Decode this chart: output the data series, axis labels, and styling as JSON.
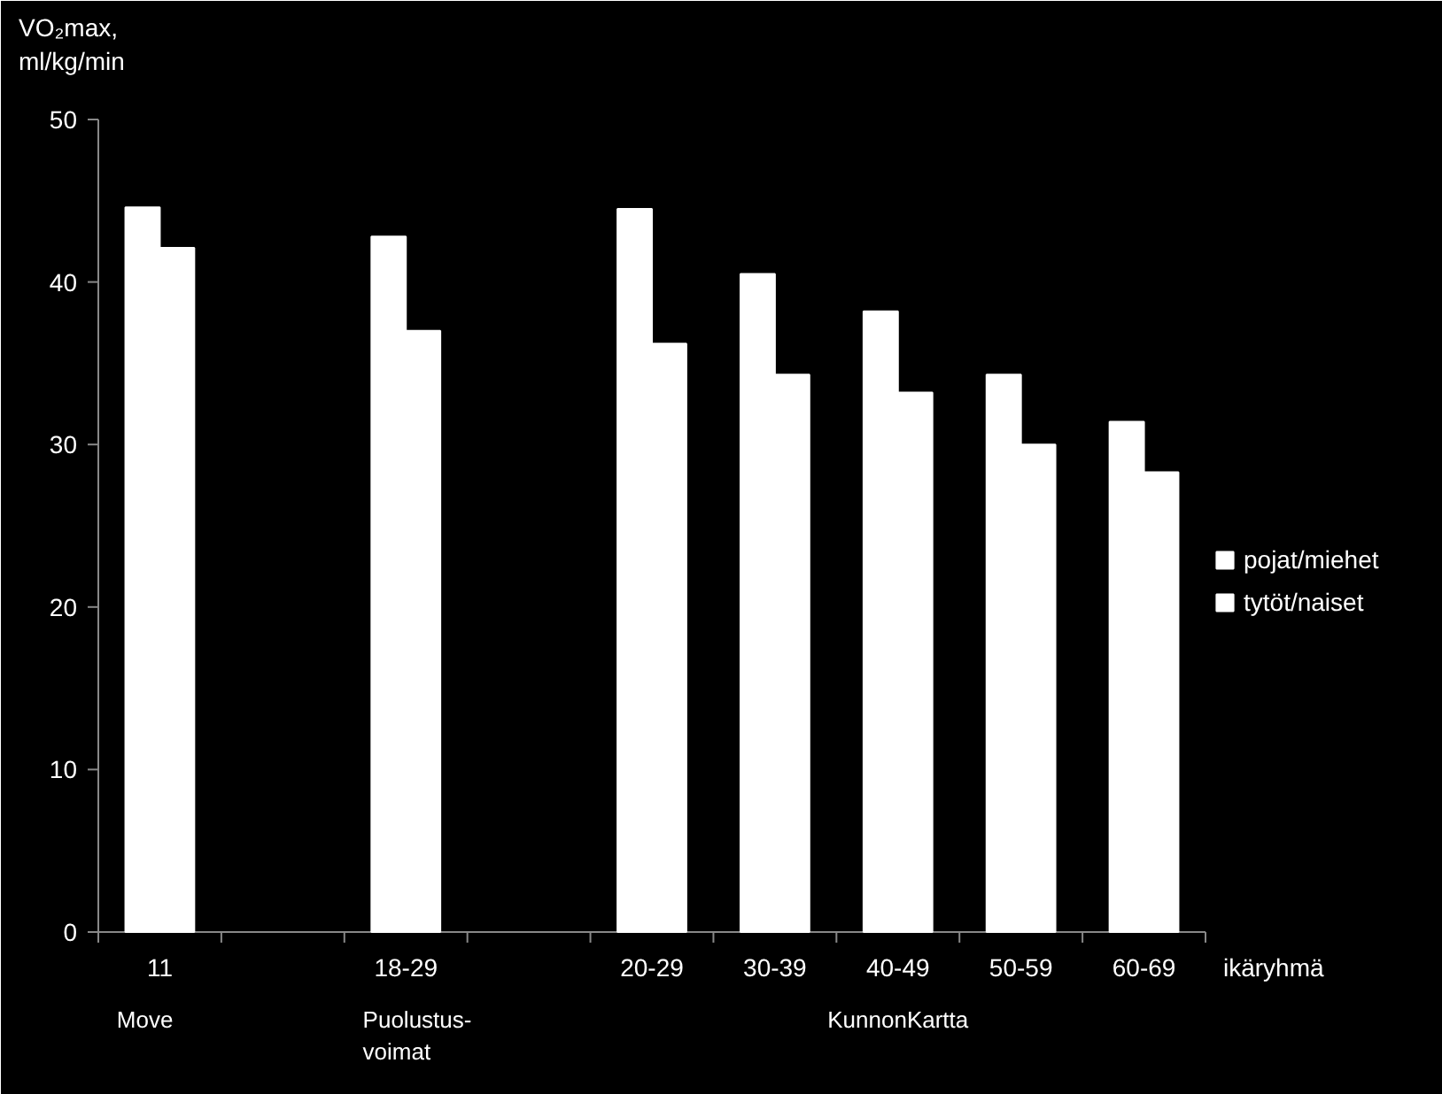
{
  "chart_data": {
    "type": "bar",
    "ylabel": "VO₂max, ml/kg/min",
    "xlabel": "ikäryhmä",
    "categories": [
      "11",
      null,
      "18-29",
      null,
      "20-29",
      "30-39",
      "40-49",
      "50-59",
      "60-69"
    ],
    "series": [
      {
        "name": "pojat/miehet",
        "color": "#ffffff",
        "values": [
          44.6,
          null,
          42.8,
          null,
          44.5,
          40.5,
          38.2,
          34.3,
          31.4
        ]
      },
      {
        "name": "tytöt/naiset",
        "color": "#ffffff",
        "values": [
          42.1,
          null,
          37.0,
          null,
          36.2,
          34.3,
          33.2,
          30.0,
          28.3
        ]
      }
    ],
    "ylim": [
      0,
      50
    ],
    "yticks": [
      0,
      10,
      20,
      30,
      40,
      50
    ],
    "grid": false,
    "legend": "right",
    "annotations": [
      "Move",
      "Puolustus-voimat",
      "KunnonKartta"
    ]
  }
}
